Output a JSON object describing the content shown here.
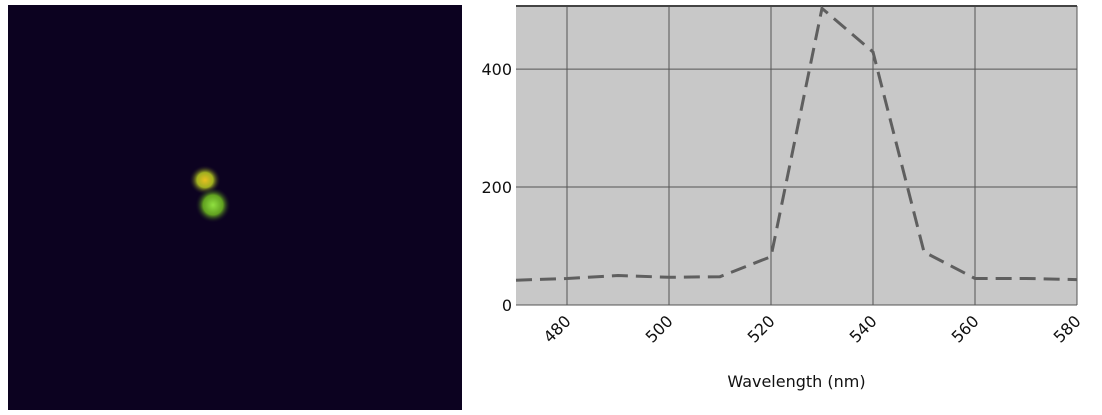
{
  "chart_data": {
    "type": "line",
    "xlabel": "Wavelength (nm)",
    "x": [
      470,
      480,
      490,
      500,
      510,
      520,
      530,
      540,
      550,
      560,
      570,
      580
    ],
    "series": [
      {
        "color": "#5f5f5f",
        "values": [
          42,
          45,
          50,
          47,
          48,
          82,
          503,
          429,
          90,
          45,
          45,
          43
        ]
      }
    ],
    "xlim": [
      470,
      580
    ],
    "xticks": [
      480,
      500,
      520,
      540,
      560,
      580
    ],
    "ylim": [
      0,
      507
    ],
    "yticks": [
      0,
      200,
      400
    ],
    "grid": true
  }
}
